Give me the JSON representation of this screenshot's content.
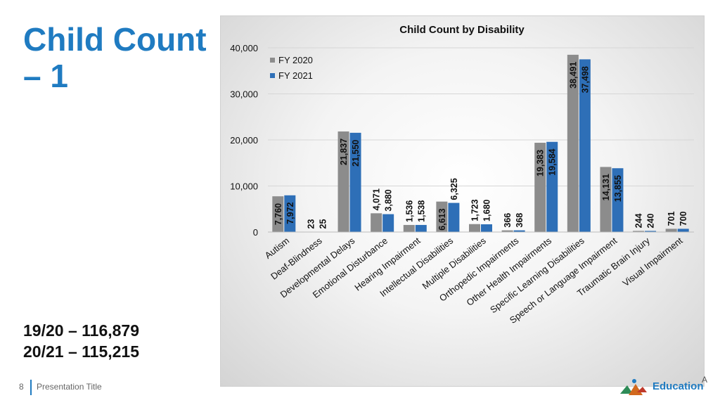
{
  "slide": {
    "title": "Child Count – 1",
    "totals": [
      "19/20 – 116,879",
      "20/21 – 115,215"
    ],
    "page_number": "8",
    "footer_title": "Presentation Title",
    "logo_text": "Education",
    "logo_extra": "A"
  },
  "colors": {
    "title": "#1f7bc1",
    "fy2020": "#8c8c8c",
    "fy2021": "#2e6fb7",
    "footer_accent": "#1f7bc1"
  },
  "chart_data": {
    "type": "bar",
    "title": "Child Count by Disability",
    "xlabel": "",
    "ylabel": "",
    "ylim": [
      0,
      40000
    ],
    "yticks": [
      0,
      10000,
      20000,
      30000,
      40000
    ],
    "ytick_labels": [
      "0",
      "10,000",
      "20,000",
      "30,000",
      "40,000"
    ],
    "grid": true,
    "legend_position": "top-left",
    "categories": [
      "Autism",
      "Deaf-Blindness",
      "Developmental Delays",
      "Emotional Disturbance",
      "Hearing Impairment",
      "Intellectual Disabilities",
      "Multiple Disabilities",
      "Orthopedic Impairments",
      "Other Health Impairments",
      "Specific Learning Disabilities",
      "Speech or Language Impairment",
      "Traumatic Brain Injury",
      "Visual Impairment"
    ],
    "series": [
      {
        "name": "FY 2020",
        "color": "#8c8c8c",
        "values": [
          7760,
          23,
          21837,
          4071,
          1536,
          6613,
          1723,
          366,
          19383,
          38491,
          14131,
          244,
          701
        ],
        "labels": [
          "7,760",
          "23",
          "21,837",
          "4,071",
          "1,536",
          "6,613",
          "1,723",
          "366",
          "19,383",
          "38,491",
          "14,131",
          "244",
          "701"
        ]
      },
      {
        "name": "FY 2021",
        "color": "#2e6fb7",
        "values": [
          7972,
          25,
          21550,
          3880,
          1538,
          6325,
          1680,
          368,
          19584,
          37498,
          13855,
          240,
          700
        ],
        "labels": [
          "7,972",
          "25",
          "21,550",
          "3,880",
          "1,538",
          "6,325",
          "1,680",
          "368",
          "19,584",
          "37,498",
          "13,855",
          "240",
          "700"
        ]
      }
    ]
  }
}
